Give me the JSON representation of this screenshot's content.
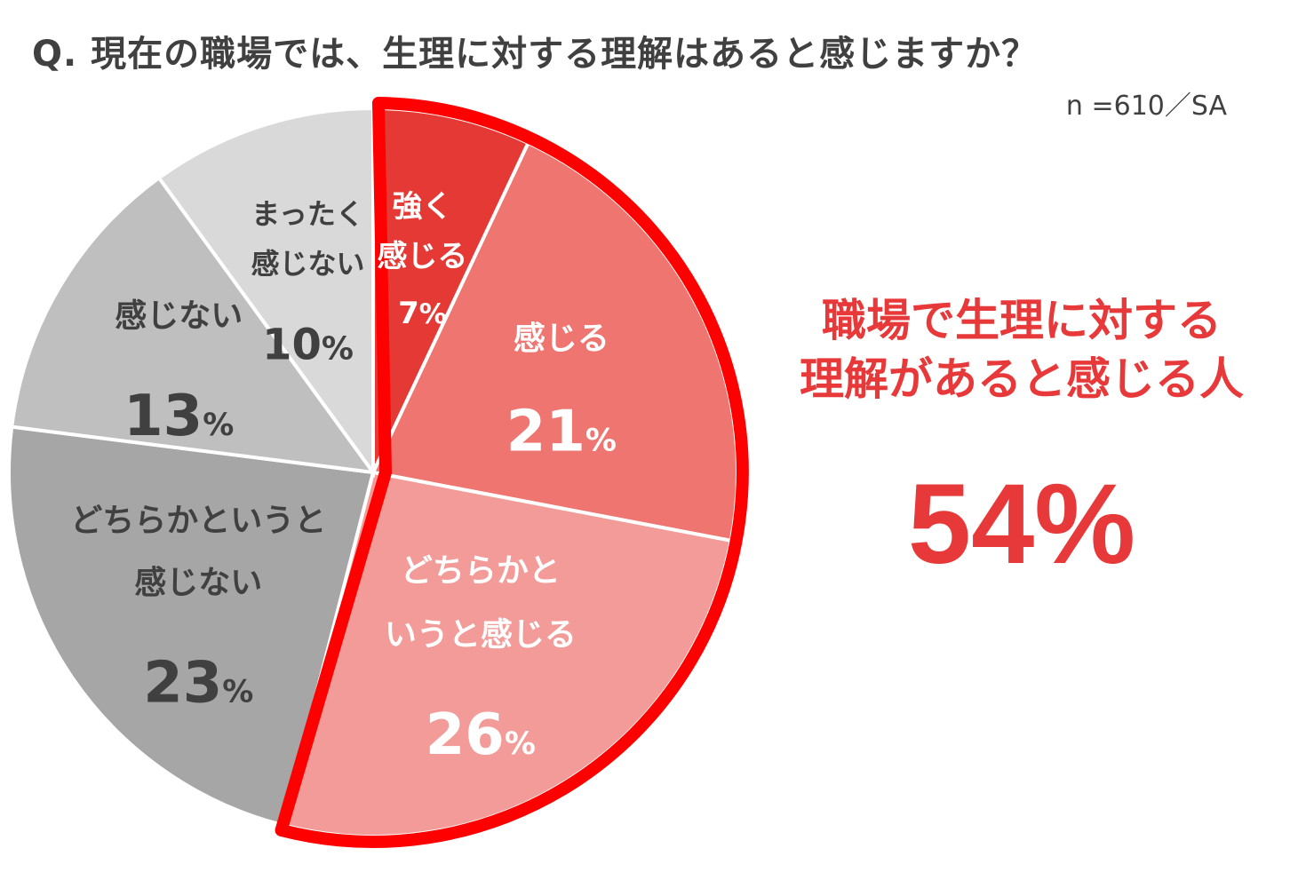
{
  "question": "Q.  現在の職場では、生理に対する理解はあると感じますか？",
  "sample_note": "n =610／SA",
  "highlight": {
    "line1": "職場で生理に対する",
    "line2": "理解があると感じる人",
    "value": "54%"
  },
  "colors": {
    "outline": "#ff0000",
    "highlight_text": "#e8393a"
  },
  "chart_data": {
    "type": "pie",
    "title": "Q.  現在の職場では、生理に対する理解はあると感じますか？",
    "start": "12 o'clock, clockwise",
    "slices": [
      {
        "label_lines": [
          "強く",
          "感じる"
        ],
        "value": 7,
        "value_label": "7",
        "color": "#e53935",
        "text_color": "#ffffff",
        "highlighted": true
      },
      {
        "label_lines": [
          "感じる"
        ],
        "value": 21,
        "value_label": "21",
        "color": "#ee7570",
        "text_color": "#ffffff",
        "highlighted": true
      },
      {
        "label_lines": [
          "どちらかと",
          "いうと感じる"
        ],
        "value": 26,
        "value_label": "26",
        "color": "#f29b98",
        "text_color": "#ffffff",
        "highlighted": true
      },
      {
        "label_lines": [
          "どちらかというと",
          "感じない"
        ],
        "value": 23,
        "value_label": "23",
        "color": "#a6a6a6",
        "text_color": "#404040",
        "highlighted": false
      },
      {
        "label_lines": [
          "感じない"
        ],
        "value": 13,
        "value_label": "13",
        "color": "#bfbfbf",
        "text_color": "#404040",
        "highlighted": false
      },
      {
        "label_lines": [
          "まったく",
          "感じない"
        ],
        "value": 10,
        "value_label": "10",
        "color": "#d9d9d9",
        "text_color": "#404040",
        "highlighted": false
      }
    ],
    "percent_sign": "%"
  }
}
